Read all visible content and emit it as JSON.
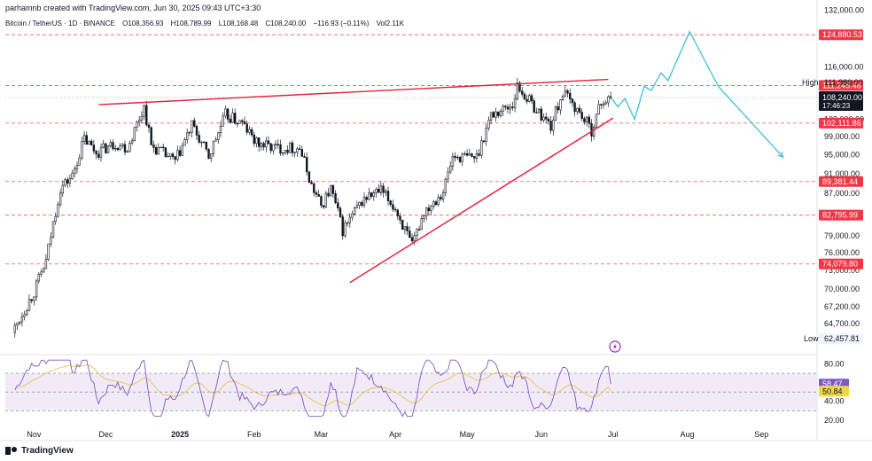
{
  "header": {
    "creator_line": "parhamnb created with TradingView.com, Jun 30, 2025 09:43 UTC+3:30",
    "symbol": "Bitcoin / TetherUS · 1D · BINANCE",
    "ohlc": {
      "O_label": "O",
      "O": "108,356.93",
      "H_label": "H",
      "H": "108,789.99",
      "L_label": "L",
      "L": "108,168.48",
      "C_label": "C",
      "C": "108,240.00",
      "change": "−116.93 (−0.11%)",
      "vol": "Vol2.11K"
    }
  },
  "footer": {
    "brand": "TradingView"
  },
  "colors": {
    "candle": "#131722",
    "level_line": "#f23645",
    "trend_line": "#e0203a",
    "projection": "#3fbfd6",
    "rsi_line": "#7e57c2",
    "rsi_ma": "#f0c04c",
    "rsi_band": "#ede7f6",
    "label_red": "#f23645",
    "label_dark": "#131722",
    "label_purple": "#7e57c2",
    "label_yellow": "#f0d54a"
  },
  "chart_data": {
    "type": "candlestick",
    "x_ticks": [
      "Nov",
      "Dec",
      "2025",
      "Feb",
      "Mar",
      "Apr",
      "May",
      "Jun",
      "Jul",
      "Aug",
      "Sep"
    ],
    "y_ticks": [
      "132,000.00",
      "116,000.00",
      "103,000.00",
      "99,000.00",
      "95,000.00",
      "91,000.00",
      "87,000.00",
      "79,000.00",
      "76,000.00",
      "73,000.00",
      "70,000.00",
      "67,200.00",
      "64,700.00"
    ],
    "price_range": [
      60500,
      133000
    ],
    "horizontal_levels": [
      {
        "value": 124880.53,
        "label": "124,880.53"
      },
      {
        "value": 111245.48,
        "label": "111,245.48"
      },
      {
        "value": 102111.86,
        "label": "102,111.86"
      },
      {
        "value": 89381.44,
        "label": "89,381.44"
      },
      {
        "value": 82795.99,
        "label": "82,795.99"
      },
      {
        "value": 74079.8,
        "label": "74,079.80"
      }
    ],
    "current_price": {
      "value": 108240.0,
      "label": "108,240.00",
      "countdown": "17:46:23"
    },
    "high": {
      "value": 111980.0,
      "label_text": "High",
      "label": "111,980.00"
    },
    "low": {
      "value": 62457.81,
      "label_text": "Low",
      "label": "62,457.81"
    },
    "resistance_trendline": [
      {
        "date": "2024-11-28",
        "value": 106500
      },
      {
        "date": "2025-06-29",
        "value": 112800
      }
    ],
    "support_trendline": [
      {
        "date": "2025-03-13",
        "value": 71000
      },
      {
        "date": "2025-07-01",
        "value": 103300
      }
    ],
    "projection_path": [
      {
        "date": "2025-06-30",
        "value": 108240
      },
      {
        "date": "2025-07-03",
        "value": 106000
      },
      {
        "date": "2025-07-06",
        "value": 108000
      },
      {
        "date": "2025-07-10",
        "value": 103000
      },
      {
        "date": "2025-07-14",
        "value": 111000
      },
      {
        "date": "2025-07-17",
        "value": 110000
      },
      {
        "date": "2025-07-21",
        "value": 114500
      },
      {
        "date": "2025-07-24",
        "value": 112500
      },
      {
        "date": "2025-08-02",
        "value": 125800
      },
      {
        "date": "2025-08-14",
        "value": 111000
      },
      {
        "date": "2025-09-10",
        "value": 94500
      }
    ],
    "rsi": {
      "y_ticks": [
        "80.00",
        "60.00",
        "40.00",
        "20.00"
      ],
      "range": [
        18,
        88
      ],
      "band": [
        30,
        70
      ],
      "midline": 50,
      "value": {
        "value": 58.47,
        "label": "58.47"
      },
      "ma": {
        "value": 50.84,
        "label": "50.84"
      }
    },
    "anchors": [
      {
        "date": "2024-10-24",
        "value": 64000
      },
      {
        "date": "2024-11-01",
        "value": 69500
      },
      {
        "date": "2024-11-06",
        "value": 74500
      },
      {
        "date": "2024-11-12",
        "value": 88000
      },
      {
        "date": "2024-11-17",
        "value": 90500
      },
      {
        "date": "2024-11-22",
        "value": 98500
      },
      {
        "date": "2024-11-27",
        "value": 95500
      },
      {
        "date": "2024-12-05",
        "value": 97500
      },
      {
        "date": "2024-12-10",
        "value": 96500
      },
      {
        "date": "2024-12-17",
        "value": 106000
      },
      {
        "date": "2024-12-20",
        "value": 97000
      },
      {
        "date": "2024-12-30",
        "value": 93500
      },
      {
        "date": "2025-01-06",
        "value": 101500
      },
      {
        "date": "2025-01-13",
        "value": 94500
      },
      {
        "date": "2025-01-20",
        "value": 104000
      },
      {
        "date": "2025-01-27",
        "value": 102000
      },
      {
        "date": "2025-02-02",
        "value": 97500
      },
      {
        "date": "2025-02-10",
        "value": 96500
      },
      {
        "date": "2025-02-20",
        "value": 96500
      },
      {
        "date": "2025-02-25",
        "value": 88500
      },
      {
        "date": "2025-03-01",
        "value": 84500
      },
      {
        "date": "2025-03-05",
        "value": 88000
      },
      {
        "date": "2025-03-10",
        "value": 80000
      },
      {
        "date": "2025-03-19",
        "value": 86000
      },
      {
        "date": "2025-03-26",
        "value": 87500
      },
      {
        "date": "2025-04-01",
        "value": 84000
      },
      {
        "date": "2025-04-08",
        "value": 77000
      },
      {
        "date": "2025-04-13",
        "value": 83500
      },
      {
        "date": "2025-04-21",
        "value": 87500
      },
      {
        "date": "2025-04-25",
        "value": 94500
      },
      {
        "date": "2025-05-05",
        "value": 94500
      },
      {
        "date": "2025-05-11",
        "value": 104000
      },
      {
        "date": "2025-05-20",
        "value": 106500
      },
      {
        "date": "2025-05-22",
        "value": 111000
      },
      {
        "date": "2025-05-31",
        "value": 104500
      },
      {
        "date": "2025-06-05",
        "value": 101500
      },
      {
        "date": "2025-06-10",
        "value": 109500
      },
      {
        "date": "2025-06-17",
        "value": 104500
      },
      {
        "date": "2025-06-22",
        "value": 100500
      },
      {
        "date": "2025-06-26",
        "value": 107000
      },
      {
        "date": "2025-06-30",
        "value": 108240
      }
    ]
  }
}
